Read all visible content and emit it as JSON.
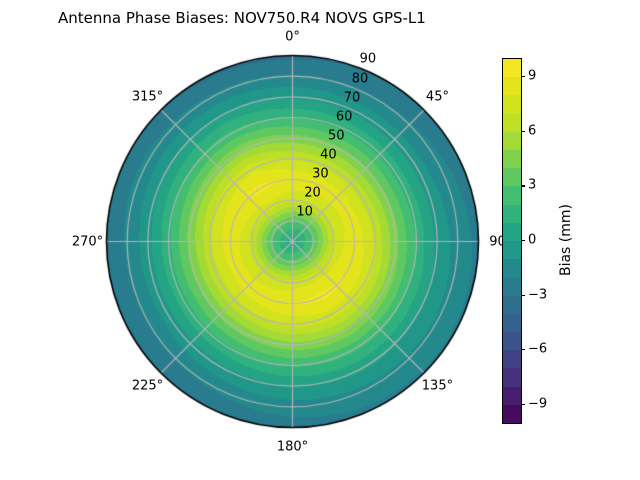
{
  "figure": {
    "title_left": "Antenna Phase Biases: NOV750.R4",
    "title_right": "NOVS GPS-L1",
    "background": "#ffffff"
  },
  "chart_data": {
    "type": "heatmap",
    "projection": "polar",
    "theta_zero_location": "top",
    "theta_direction": "clockwise",
    "title": "Antenna Phase Biases: NOV750.R4",
    "title_right": "NOVS GPS-L1",
    "angular_ticks": [
      {
        "angle_deg": 0,
        "label": "0°"
      },
      {
        "angle_deg": 45,
        "label": "45°"
      },
      {
        "angle_deg": 90,
        "label": "90"
      },
      {
        "angle_deg": 135,
        "label": "135°"
      },
      {
        "angle_deg": 180,
        "label": "180°"
      },
      {
        "angle_deg": 225,
        "label": "225°"
      },
      {
        "angle_deg": 270,
        "label": "270°"
      },
      {
        "angle_deg": 315,
        "label": "315°"
      }
    ],
    "radial_ticks": [
      10,
      20,
      30,
      40,
      50,
      60,
      70,
      80,
      90
    ],
    "radial_label_angle_deg": 22.5,
    "rmax": 90,
    "grid_on": true,
    "grid_color": "#b6b6b6",
    "outline_color": "#000000",
    "azimuth_deg": [
      0,
      30,
      60,
      90,
      120,
      150,
      180,
      210,
      240,
      270,
      300,
      330
    ],
    "zenith_deg": [
      0,
      10,
      20,
      30,
      40,
      50,
      60,
      70,
      80,
      90
    ],
    "bias_mm": [
      [
        0.3,
        0.3,
        0.3,
        0.3,
        0.3,
        0.3,
        0.3,
        0.3,
        0.3,
        0.3,
        0.3,
        0.3
      ],
      [
        3.1,
        3.0,
        2.9,
        3.0,
        3.3,
        3.5,
        3.3,
        3.0,
        2.9,
        3.0,
        3.2,
        3.4
      ],
      [
        7.3,
        7.1,
        7.0,
        7.2,
        7.5,
        7.7,
        7.5,
        7.2,
        7.0,
        7.1,
        7.4,
        7.7
      ],
      [
        8.9,
        8.7,
        8.6,
        8.8,
        9.1,
        9.3,
        9.1,
        8.8,
        8.6,
        8.7,
        9.0,
        9.3
      ],
      [
        6.9,
        6.7,
        6.6,
        6.9,
        7.4,
        7.6,
        7.3,
        6.9,
        6.6,
        6.8,
        7.3,
        7.8
      ],
      [
        4.4,
        4.2,
        4.1,
        4.3,
        4.6,
        4.8,
        4.6,
        4.3,
        4.1,
        4.2,
        4.5,
        4.8
      ],
      [
        1.9,
        1.7,
        1.6,
        1.8,
        2.1,
        2.3,
        2.1,
        1.8,
        1.6,
        1.7,
        2.0,
        2.3
      ],
      [
        -0.2,
        -0.4,
        -0.5,
        -0.3,
        0.0,
        0.2,
        0.0,
        -0.3,
        -0.5,
        -0.4,
        -0.1,
        0.1
      ],
      [
        -1.9,
        -2.0,
        -1.8,
        -1.4,
        -1.2,
        -1.3,
        -1.5,
        -1.8,
        -2.0,
        -1.9,
        -1.7,
        -1.8
      ],
      [
        -3.3,
        -2.9,
        -2.5,
        -2.3,
        -2.1,
        -2.2,
        -2.5,
        -3.1,
        -3.1,
        -2.6,
        -2.8,
        -3.2
      ]
    ],
    "clim": [
      -10,
      10
    ],
    "level_step": 1,
    "colormap_name": "viridis",
    "colormap_anchors": [
      "#440154",
      "#482878",
      "#3e4a89",
      "#31688e",
      "#26828e",
      "#1f9e89",
      "#35b779",
      "#6ece58",
      "#b5de2b",
      "#dae319",
      "#fde725"
    ],
    "colorbar": {
      "label": "Bias (mm)",
      "tick_values": [
        9,
        6,
        3,
        0,
        -3,
        -6,
        -9
      ],
      "tick_labels": [
        "9",
        "6",
        "3",
        "0",
        "−3",
        "−6",
        "−9"
      ]
    }
  }
}
